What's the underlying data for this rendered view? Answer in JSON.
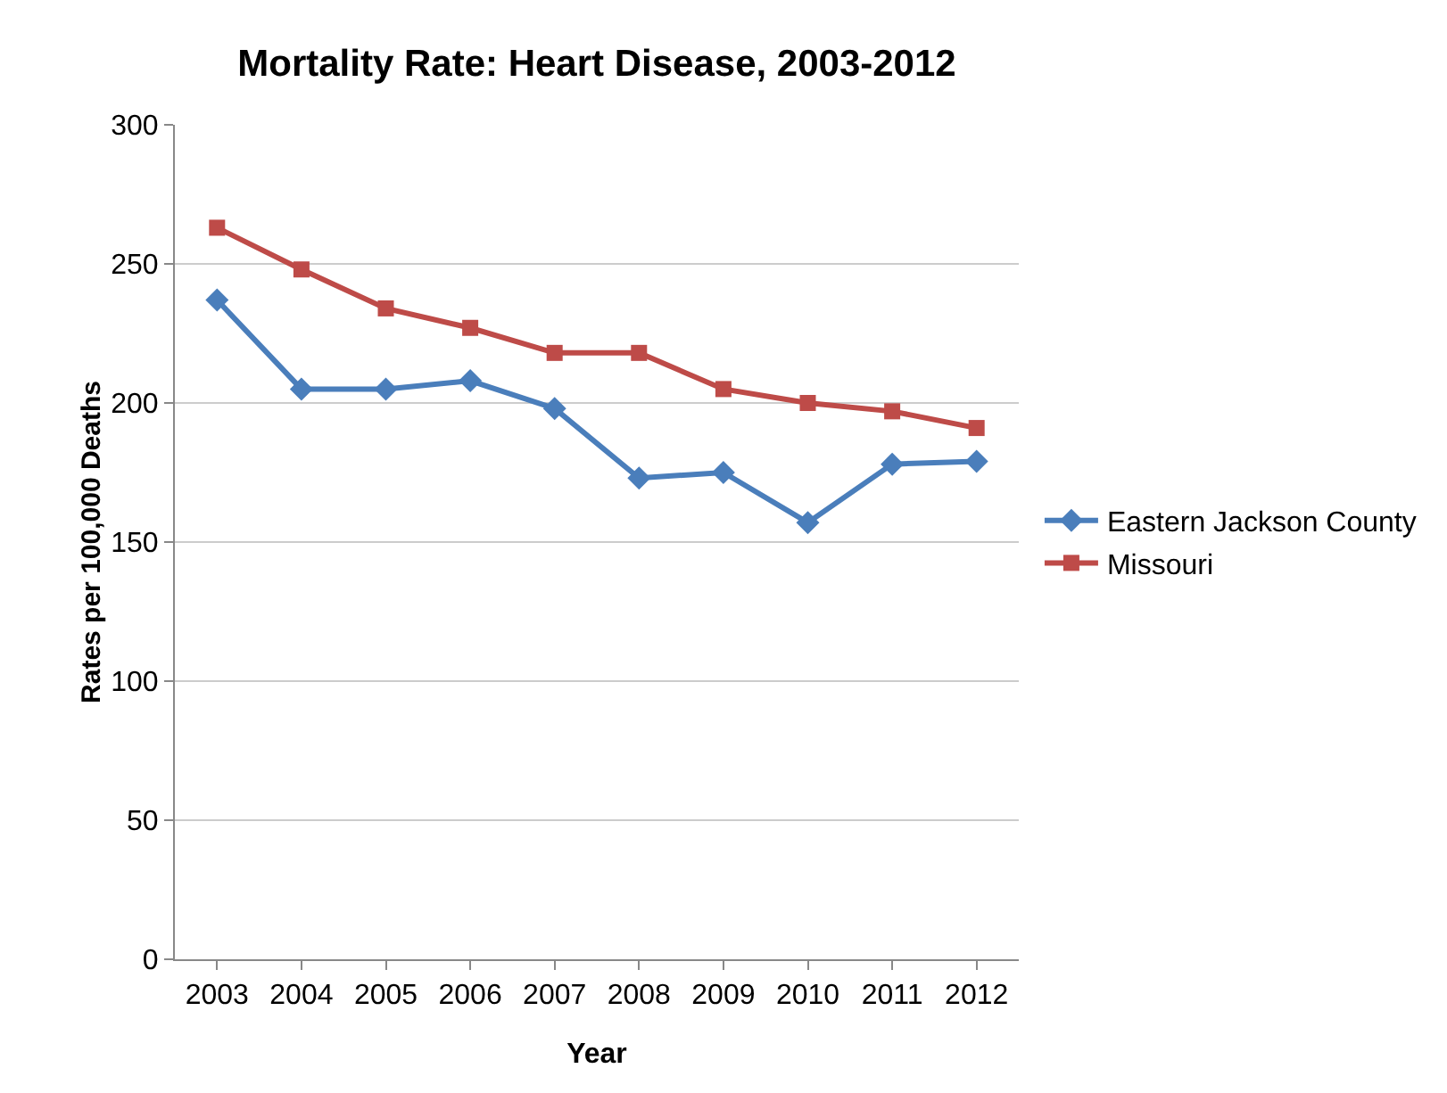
{
  "chart_data": {
    "type": "line",
    "title": "Mortality Rate: Heart Disease, 2003-2012",
    "xlabel": "Year",
    "ylabel": "Rates per 100,000 Deaths",
    "categories": [
      "2003",
      "2004",
      "2005",
      "2006",
      "2007",
      "2008",
      "2009",
      "2010",
      "2011",
      "2012"
    ],
    "series": [
      {
        "name": "Eastern Jackson County",
        "color": "#4a7ebb",
        "marker": "diamond",
        "values": [
          237,
          205,
          205,
          208,
          198,
          173,
          175,
          157,
          178,
          179
        ]
      },
      {
        "name": "Missouri",
        "color": "#be4b48",
        "marker": "square",
        "values": [
          263,
          248,
          234,
          227,
          218,
          218,
          205,
          200,
          197,
          191
        ]
      }
    ],
    "ylim": [
      0,
      300
    ],
    "yticks": [
      0,
      50,
      100,
      150,
      200,
      250,
      300
    ],
    "grid": "y",
    "legend": "right",
    "line_style": "solid"
  }
}
